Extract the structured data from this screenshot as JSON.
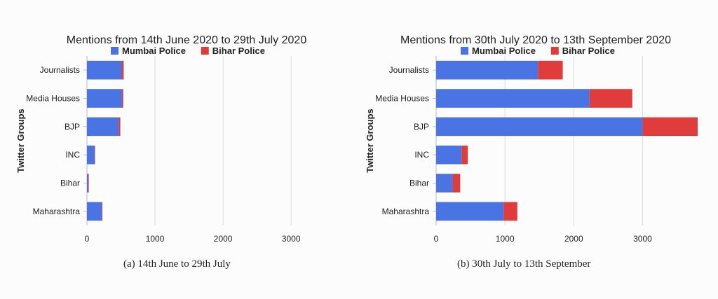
{
  "colors": {
    "mumbai": "#4a74e4",
    "bihar": "#e13c3c",
    "grid": "#dcdcdc",
    "text": "#222222"
  },
  "chart_data": [
    {
      "type": "bar",
      "orientation": "horizontal",
      "stacked": true,
      "title": "Mentions from  14th June 2020 to 29th July 2020",
      "ylabel": "Twitter Groups",
      "xlabel": "",
      "categories": [
        "Journalists",
        "Media Houses",
        "BJP",
        "INC",
        "Bihar",
        "Maharashtra"
      ],
      "series": [
        {
          "name": "Mumbai Police",
          "values": [
            510,
            515,
            465,
            115,
            15,
            220
          ]
        },
        {
          "name": "Bihar Police",
          "values": [
            30,
            18,
            25,
            5,
            12,
            8
          ]
        }
      ],
      "xlim": [
        0,
        3400
      ],
      "xticks": [
        "0",
        "1000",
        "2000",
        "3000"
      ],
      "grid": true,
      "legend_position": "top-center",
      "caption": "(a) 14th June to 29th July"
    },
    {
      "type": "bar",
      "orientation": "horizontal",
      "stacked": true,
      "title": "Mentions from  30th July 2020 to 13th September 2020",
      "ylabel": "Twitter Groups",
      "xlabel": "",
      "categories": [
        "Journalists",
        "Media Houses",
        "BJP",
        "INC",
        "Bihar",
        "Maharashtra"
      ],
      "series": [
        {
          "name": "Mumbai Police",
          "values": [
            1480,
            2230,
            3000,
            370,
            240,
            980
          ]
        },
        {
          "name": "Bihar Police",
          "values": [
            360,
            620,
            800,
            90,
            110,
            200
          ]
        }
      ],
      "xlim": [
        0,
        3800
      ],
      "xticks": [
        "0",
        "1000",
        "2000",
        "3000"
      ],
      "grid": true,
      "legend_position": "top-center",
      "caption": "(b) 30th July to 13th September"
    }
  ]
}
